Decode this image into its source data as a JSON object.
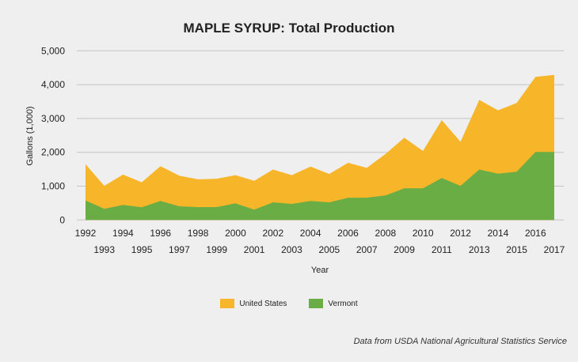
{
  "chart_data": {
    "type": "area",
    "title": "MAPLE SYRUP: Total Production",
    "xlabel": "Year",
    "ylabel": "Gallons (1,000)",
    "ylim": [
      0,
      5000
    ],
    "yticks": [
      "0",
      "1,000",
      "2,000",
      "3,000",
      "4,000",
      "5,000"
    ],
    "ytick_values": [
      0,
      1000,
      2000,
      3000,
      4000,
      5000
    ],
    "grid": true,
    "legend_position": "bottom",
    "x": [
      1992,
      1993,
      1994,
      1995,
      1996,
      1997,
      1998,
      1999,
      2000,
      2001,
      2002,
      2003,
      2004,
      2005,
      2006,
      2007,
      2008,
      2009,
      2010,
      2011,
      2012,
      2013,
      2014,
      2015,
      2016,
      2017
    ],
    "series": [
      {
        "name": "United States",
        "color": "#f7b52a",
        "values": [
          1650,
          1010,
          1340,
          1115,
          1590,
          1310,
          1200,
          1220,
          1325,
          1160,
          1490,
          1325,
          1580,
          1360,
          1690,
          1540,
          1950,
          2430,
          2040,
          2950,
          2310,
          3550,
          3240,
          3460,
          4230,
          4290
        ]
      },
      {
        "name": "Vermont",
        "color": "#6aad45",
        "values": [
          575,
          330,
          445,
          375,
          560,
          405,
          380,
          380,
          490,
          305,
          520,
          475,
          560,
          520,
          655,
          660,
          725,
          935,
          935,
          1240,
          1010,
          1490,
          1370,
          1425,
          2010,
          2010
        ]
      }
    ],
    "source": "Data from USDA National Agricultural Statistics Service"
  }
}
